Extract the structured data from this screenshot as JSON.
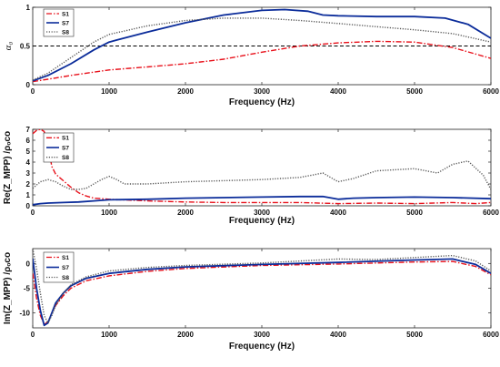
{
  "chart_data": [
    {
      "type": "line",
      "ylabel": "α₀",
      "xlabel": "Frequency (Hz)",
      "xlim": [
        0,
        6000
      ],
      "ylim": [
        0,
        1
      ],
      "xticks": [
        "0",
        "1000",
        "2000",
        "3000",
        "4000",
        "5000",
        "6000"
      ],
      "yticks": [
        "0",
        "0.5",
        "1"
      ],
      "reference_line": {
        "y": 0.5,
        "style": "dashed",
        "color": "#000000"
      },
      "legend_position": "top-left",
      "series": [
        {
          "name": "S1",
          "color": "#e8101a",
          "style": "dashdot",
          "x": [
            0,
            200,
            500,
            1000,
            1500,
            2000,
            2500,
            3000,
            3500,
            4000,
            4500,
            5000,
            5500,
            6000
          ],
          "y": [
            0.04,
            0.07,
            0.12,
            0.19,
            0.23,
            0.27,
            0.33,
            0.42,
            0.5,
            0.54,
            0.56,
            0.55,
            0.48,
            0.34
          ]
        },
        {
          "name": "S7",
          "color": "#0b2c9a",
          "style": "solid",
          "x": [
            0,
            200,
            500,
            800,
            1000,
            1500,
            2000,
            2500,
            3000,
            3300,
            3600,
            3800,
            4000,
            4500,
            5000,
            5400,
            5700,
            6000
          ],
          "y": [
            0.05,
            0.12,
            0.27,
            0.45,
            0.55,
            0.68,
            0.8,
            0.9,
            0.96,
            0.97,
            0.95,
            0.9,
            0.89,
            0.88,
            0.88,
            0.86,
            0.78,
            0.6
          ]
        },
        {
          "name": "S8",
          "color": "#555555",
          "style": "dotted",
          "x": [
            0,
            200,
            500,
            800,
            1000,
            1500,
            2000,
            2500,
            3000,
            3500,
            4000,
            4500,
            5000,
            5500,
            6000
          ],
          "y": [
            0.06,
            0.15,
            0.35,
            0.55,
            0.65,
            0.76,
            0.83,
            0.86,
            0.86,
            0.83,
            0.79,
            0.75,
            0.71,
            0.66,
            0.55
          ]
        }
      ]
    },
    {
      "type": "line",
      "ylabel": "Re(Z_MPP) /ρₒco",
      "xlabel": "Frequency (Hz)",
      "xlim": [
        0,
        6000
      ],
      "ylim": [
        0,
        7
      ],
      "xticks": [
        "0",
        "1000",
        "2000",
        "3000",
        "4000",
        "5000",
        "6000"
      ],
      "yticks": [
        "0",
        "1",
        "2",
        "3",
        "4",
        "5",
        "6",
        "7"
      ],
      "legend_position": "top-left",
      "series": [
        {
          "name": "S1",
          "color": "#e8101a",
          "style": "dashdot",
          "x": [
            0,
            50,
            100,
            150,
            200,
            250,
            300,
            350,
            400,
            450,
            500,
            600,
            700,
            800,
            1000,
            1500,
            2000,
            2500,
            3000,
            3500,
            4000,
            4500,
            5000,
            5500,
            5800,
            6000
          ],
          "y": [
            6.6,
            6.9,
            7.0,
            6.8,
            5.5,
            3.6,
            2.9,
            2.6,
            2.3,
            2.0,
            1.7,
            1.2,
            0.9,
            0.7,
            0.6,
            0.45,
            0.35,
            0.3,
            0.3,
            0.3,
            0.2,
            0.25,
            0.2,
            0.3,
            0.2,
            0.3
          ]
        },
        {
          "name": "S7",
          "color": "#0b2c9a",
          "style": "solid",
          "x": [
            0,
            100,
            200,
            400,
            600,
            800,
            1000,
            1500,
            2000,
            2500,
            3000,
            3500,
            3800,
            4000,
            4200,
            4500,
            5000,
            5500,
            6000
          ],
          "y": [
            0.1,
            0.2,
            0.25,
            0.3,
            0.35,
            0.45,
            0.55,
            0.6,
            0.7,
            0.75,
            0.8,
            0.85,
            0.85,
            0.6,
            0.7,
            0.75,
            0.8,
            0.75,
            0.65
          ]
        },
        {
          "name": "S8",
          "color": "#555555",
          "style": "dotted",
          "x": [
            0,
            100,
            200,
            300,
            400,
            500,
            600,
            700,
            800,
            900,
            1000,
            1100,
            1200,
            1500,
            2000,
            2500,
            3000,
            3500,
            3800,
            4000,
            4200,
            4500,
            5000,
            5300,
            5500,
            5700,
            5900,
            6000
          ],
          "y": [
            1.6,
            2.2,
            2.4,
            2.2,
            1.8,
            1.5,
            1.5,
            1.6,
            2.0,
            2.4,
            2.7,
            2.4,
            2.0,
            2.0,
            2.2,
            2.3,
            2.4,
            2.6,
            3.0,
            2.2,
            2.5,
            3.2,
            3.4,
            3.0,
            3.8,
            4.1,
            2.8,
            1.5
          ]
        }
      ]
    },
    {
      "type": "line",
      "ylabel": "Im(Z_MPP) /ρₒco",
      "xlabel": "Frequency (Hz)",
      "xlim": [
        0,
        6000
      ],
      "ylim": [
        -13,
        3
      ],
      "xticks": [
        "0",
        "1000",
        "2000",
        "3000",
        "4000",
        "5000",
        "6000"
      ],
      "yticks": [
        "0",
        "-5",
        "-10"
      ],
      "legend_position": "top-left",
      "series": [
        {
          "name": "S1",
          "color": "#e8101a",
          "style": "dashdot",
          "x": [
            0,
            50,
            100,
            150,
            200,
            250,
            300,
            400,
            500,
            700,
            1000,
            1500,
            2000,
            3000,
            4000,
            5000,
            5500,
            5800,
            6000
          ],
          "y": [
            -2.0,
            -7.0,
            -10.5,
            -12.3,
            -11.8,
            -10.0,
            -8.5,
            -6.5,
            -5.0,
            -3.5,
            -2.5,
            -1.6,
            -1.0,
            -0.4,
            -0.1,
            0.3,
            0.4,
            -0.6,
            -2.3
          ]
        },
        {
          "name": "S7",
          "color": "#0b2c9a",
          "style": "solid",
          "x": [
            0,
            50,
            100,
            150,
            200,
            250,
            300,
            400,
            500,
            700,
            1000,
            1500,
            2000,
            3000,
            4000,
            5000,
            5500,
            5800,
            6000
          ],
          "y": [
            1.0,
            -5.0,
            -9.5,
            -12.5,
            -12.0,
            -10.0,
            -8.0,
            -6.0,
            -4.5,
            -3.0,
            -2.0,
            -1.2,
            -0.7,
            -0.2,
            0.2,
            0.7,
            0.9,
            -0.2,
            -2.0
          ]
        },
        {
          "name": "S8",
          "color": "#555555",
          "style": "dotted",
          "x": [
            0,
            50,
            100,
            150,
            200,
            250,
            300,
            400,
            500,
            700,
            1000,
            1500,
            2000,
            3000,
            3500,
            4000,
            4500,
            5000,
            5500,
            5800,
            6000
          ],
          "y": [
            3.0,
            -1.0,
            -6.0,
            -10.5,
            -12.0,
            -10.5,
            -8.5,
            -6.0,
            -4.3,
            -2.7,
            -1.5,
            -0.8,
            -0.4,
            0.1,
            0.5,
            0.9,
            0.8,
            1.2,
            1.6,
            0.5,
            -1.5
          ]
        }
      ]
    }
  ]
}
